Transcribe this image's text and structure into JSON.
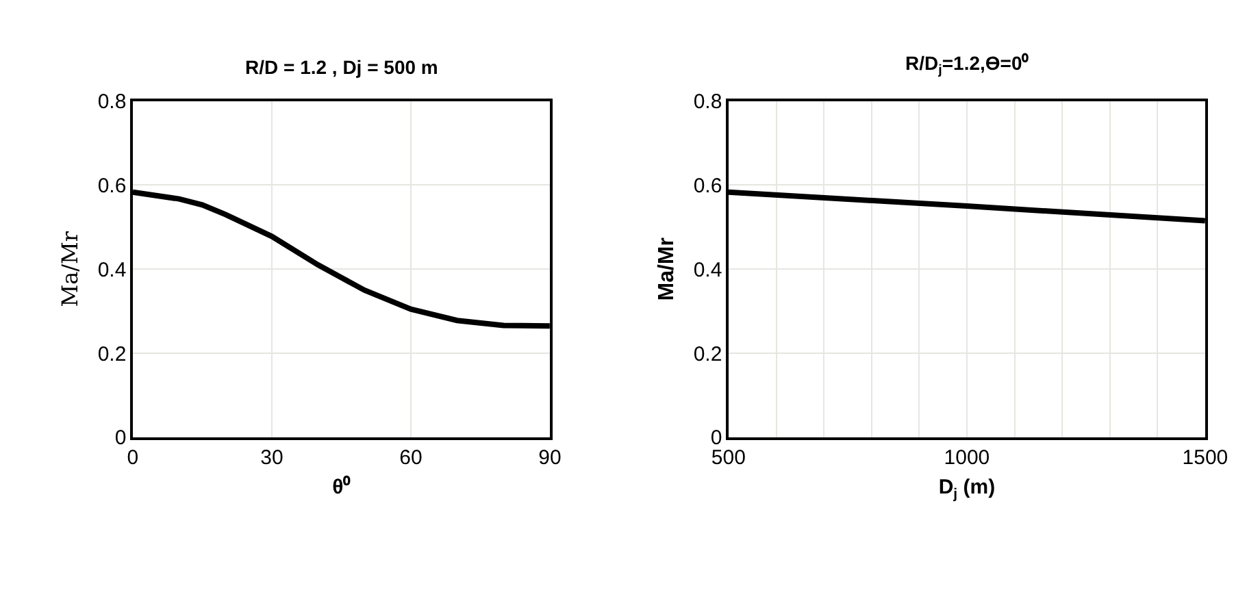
{
  "chart_data": [
    {
      "type": "line",
      "title": "R/D = 1.2 , Dj = 500 m",
      "xlabel": "θ⁰",
      "ylabel": "Ma/Mr",
      "x": [
        0,
        10,
        15,
        20,
        30,
        40,
        45,
        50,
        60,
        70,
        80,
        90
      ],
      "series": [
        {
          "color": "#000000",
          "values": [
            0.583,
            0.567,
            0.553,
            0.53,
            0.478,
            0.41,
            0.38,
            0.35,
            0.305,
            0.278,
            0.266,
            0.265
          ]
        }
      ],
      "xlim": [
        0,
        90
      ],
      "xticks": [
        0,
        30,
        60,
        90
      ],
      "ylim": [
        0,
        0.8
      ],
      "yticks": [
        0,
        {
          "value": 0.2,
          "label": "0.2"
        },
        {
          "value": 0.4,
          "label": "0.4"
        },
        {
          "value": 0.6,
          "label": "0.6"
        },
        {
          "value": 0.8,
          "label": "0.8"
        }
      ],
      "grid": true,
      "marker": "none",
      "line_style": "solid"
    },
    {
      "type": "line",
      "title": "R/D$_{j}$=1.2,ϴ=0⁰",
      "xlabel": "D$_{j}$ (m)",
      "ylabel": "Ma/Mr",
      "x": [
        500,
        1000,
        1500
      ],
      "series": [
        {
          "color": "#000000",
          "values": [
            0.583,
            0.55,
            0.515
          ]
        }
      ],
      "xlim": [
        500,
        1500
      ],
      "xticks": [
        500,
        {
          "value": 600,
          "label": null
        },
        {
          "value": 700,
          "label": null
        },
        {
          "value": 800,
          "label": null
        },
        {
          "value": 900,
          "label": null
        },
        1000,
        {
          "value": 1100,
          "label": null
        },
        {
          "value": 1200,
          "label": null
        },
        {
          "value": 1300,
          "label": null
        },
        {
          "value": 1400,
          "label": null
        },
        1500
      ],
      "ylim": [
        0,
        0.8
      ],
      "yticks": [
        0,
        {
          "value": 0.2,
          "label": "0.2"
        },
        {
          "value": 0.4,
          "label": "0.4"
        },
        {
          "value": 0.6,
          "label": "0.6"
        },
        {
          "value": 0.8,
          "label": "0.8"
        }
      ],
      "grid": true,
      "marker": "none",
      "line_style": "solid"
    }
  ]
}
